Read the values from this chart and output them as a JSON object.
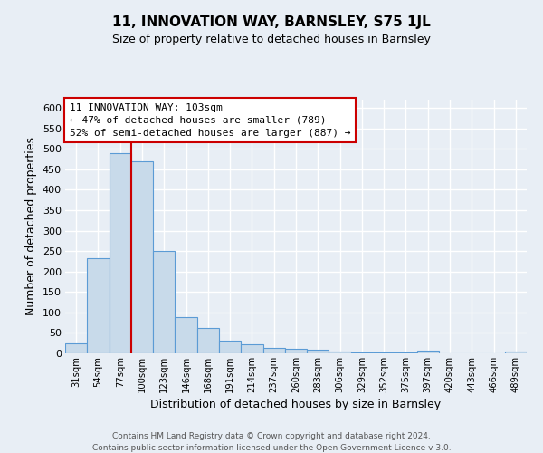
{
  "title": "11, INNOVATION WAY, BARNSLEY, S75 1JL",
  "subtitle": "Size of property relative to detached houses in Barnsley",
  "xlabel": "Distribution of detached houses by size in Barnsley",
  "ylabel": "Number of detached properties",
  "bar_labels": [
    "31sqm",
    "54sqm",
    "77sqm",
    "100sqm",
    "123sqm",
    "146sqm",
    "168sqm",
    "191sqm",
    "214sqm",
    "237sqm",
    "260sqm",
    "283sqm",
    "306sqm",
    "329sqm",
    "352sqm",
    "375sqm",
    "397sqm",
    "420sqm",
    "443sqm",
    "466sqm",
    "489sqm"
  ],
  "bar_heights": [
    25,
    233,
    490,
    470,
    250,
    88,
    62,
    32,
    22,
    13,
    10,
    8,
    5,
    3,
    2,
    2,
    6,
    1,
    0,
    0,
    5
  ],
  "bar_color": "#c8daea",
  "bar_edge_color": "#5b9bd5",
  "red_line_index": 3,
  "ylim": [
    0,
    620
  ],
  "yticks": [
    0,
    50,
    100,
    150,
    200,
    250,
    300,
    350,
    400,
    450,
    500,
    550,
    600
  ],
  "annotation_title": "11 INNOVATION WAY: 103sqm",
  "annotation_line1": "← 47% of detached houses are smaller (789)",
  "annotation_line2": "52% of semi-detached houses are larger (887) →",
  "footer_line1": "Contains HM Land Registry data © Crown copyright and database right 2024.",
  "footer_line2": "Contains public sector information licensed under the Open Government Licence v 3.0.",
  "bg_color": "#e8eef5",
  "plot_bg_color": "#e8eef5",
  "grid_color": "#ffffff"
}
